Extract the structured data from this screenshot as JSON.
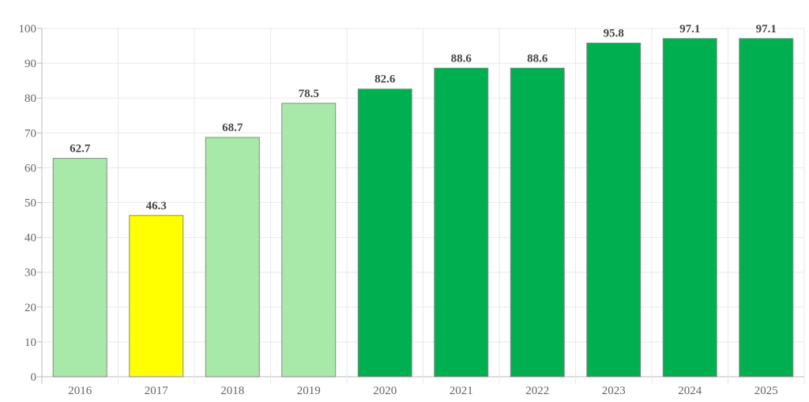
{
  "chart_data": {
    "type": "bar",
    "title": "",
    "xlabel": "",
    "ylabel": "",
    "ylim": [
      0,
      100
    ],
    "yticks": [
      0,
      10,
      20,
      30,
      40,
      50,
      60,
      70,
      80,
      90,
      100
    ],
    "grid": true,
    "categories": [
      "2016",
      "2017",
      "2018",
      "2019",
      "2020",
      "2021",
      "2022",
      "2023",
      "2024",
      "2025"
    ],
    "values": [
      62.7,
      46.3,
      68.7,
      78.5,
      82.6,
      88.6,
      88.6,
      95.8,
      97.1,
      97.1
    ],
    "data_labels": [
      "62.7",
      "46.3",
      "68.7",
      "78.5",
      "82.6",
      "88.6",
      "88.6",
      "95.8",
      "97.1",
      "97.1"
    ],
    "bar_colors": [
      "#a8e8a8",
      "#ffff00",
      "#a8e8a8",
      "#a8e8a8",
      "#00b050",
      "#00b050",
      "#00b050",
      "#00b050",
      "#00b050",
      "#00b050"
    ]
  }
}
